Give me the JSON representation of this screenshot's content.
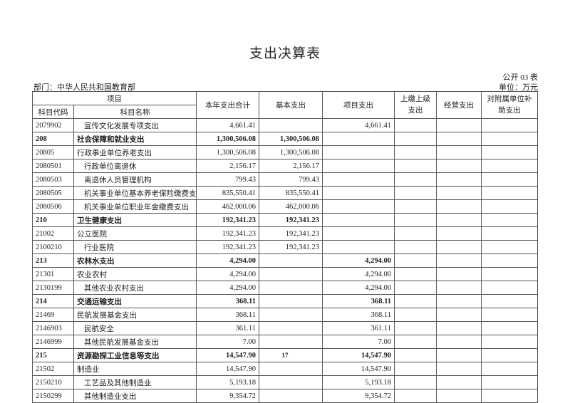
{
  "title": "支出决算表",
  "form_no": "公开 03 表",
  "department": "部门：中华人民共和国教育部",
  "unit": "单位：万元",
  "headers": {
    "item": "项目",
    "code": "科目代码",
    "name": "科目名称",
    "total": "本年支出合计",
    "basic": "基本支出",
    "project": "项目支出",
    "remit": "上缴上级支出",
    "business": "经营支出",
    "subsidy": "对附属单位补助支出"
  },
  "rows": [
    {
      "code": "2079902",
      "name": "宣传文化发展专项支出",
      "total": "4,661.41",
      "basic": "",
      "project": "4,661.41",
      "level": 3
    },
    {
      "code": "208",
      "name": "社会保障和就业支出",
      "total": "1,300,506.08",
      "basic": "1,300,506.08",
      "project": "",
      "level": 1
    },
    {
      "code": "20805",
      "name": "行政事业单位养老支出",
      "total": "1,300,506.08",
      "basic": "1,300,506.08",
      "project": "",
      "level": 2
    },
    {
      "code": "2080501",
      "name": "行政单位离退休",
      "total": "2,156.17",
      "basic": "2,156.17",
      "project": "",
      "level": 3
    },
    {
      "code": "2080503",
      "name": "离退休人员管理机构",
      "total": "799.43",
      "basic": "799.43",
      "project": "",
      "level": 3
    },
    {
      "code": "2080505",
      "name": "机关事业单位基本养老保险缴费支出",
      "total": "835,550.41",
      "basic": "835,550.41",
      "project": "",
      "level": 3
    },
    {
      "code": "2080506",
      "name": "机关事业单位职业年金缴费支出",
      "total": "462,000.06",
      "basic": "462,000.06",
      "project": "",
      "level": 3
    },
    {
      "code": "210",
      "name": "卫生健康支出",
      "total": "192,341.23",
      "basic": "192,341.23",
      "project": "",
      "level": 1
    },
    {
      "code": "21002",
      "name": "公立医院",
      "total": "192,341.23",
      "basic": "192,341.23",
      "project": "",
      "level": 2
    },
    {
      "code": "2100210",
      "name": "行业医院",
      "total": "192,341.23",
      "basic": "192,341.23",
      "project": "",
      "level": 3
    },
    {
      "code": "213",
      "name": "农林水支出",
      "total": "4,294.00",
      "basic": "",
      "project": "4,294.00",
      "level": 1
    },
    {
      "code": "21301",
      "name": "农业农村",
      "total": "4,294.00",
      "basic": "",
      "project": "4,294.00",
      "level": 2
    },
    {
      "code": "2130199",
      "name": "其他农业农村支出",
      "total": "4,294.00",
      "basic": "",
      "project": "4,294.00",
      "level": 3
    },
    {
      "code": "214",
      "name": "交通运输支出",
      "total": "368.11",
      "basic": "",
      "project": "368.11",
      "level": 1
    },
    {
      "code": "21469",
      "name": "民航发展基金支出",
      "total": "368.11",
      "basic": "",
      "project": "368.11",
      "level": 2
    },
    {
      "code": "2146903",
      "name": "民航安全",
      "total": "361.11",
      "basic": "",
      "project": "361.11",
      "level": 3
    },
    {
      "code": "2146999",
      "name": "其他民航发展基金支出",
      "total": "7.00",
      "basic": "",
      "project": "7.00",
      "level": 3
    },
    {
      "code": "215",
      "name": "资源勘探工业信息等支出",
      "total": "14,547.90",
      "basic": "",
      "project": "14,547.90",
      "level": 1
    },
    {
      "code": "21502",
      "name": "制造业",
      "total": "14,547.90",
      "basic": "",
      "project": "14,547.90",
      "level": 2
    },
    {
      "code": "2150210",
      "name": "工艺品及其他制造业",
      "total": "5,193.18",
      "basic": "",
      "project": "5,193.18",
      "level": 3
    },
    {
      "code": "2150299",
      "name": "其他制造业支出",
      "total": "9,354.72",
      "basic": "",
      "project": "9,354.72",
      "level": 3
    }
  ],
  "page_number": "17"
}
